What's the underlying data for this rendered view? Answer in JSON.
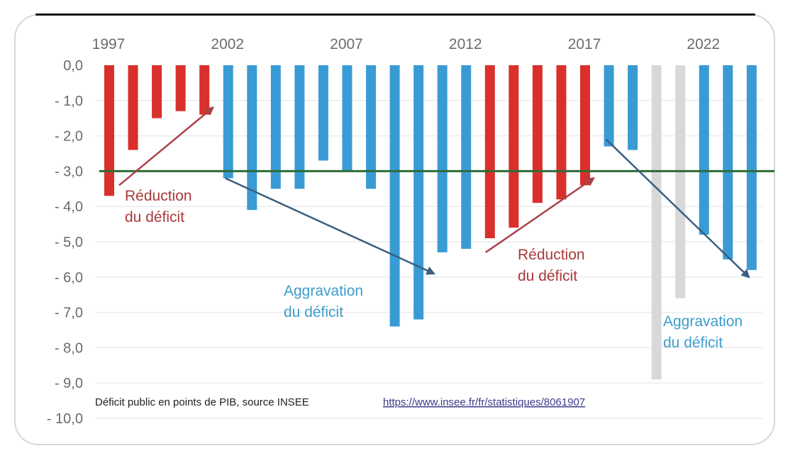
{
  "chart_data": {
    "type": "bar",
    "title": "",
    "xlabel": "",
    "ylabel": "",
    "ylim": [
      -10,
      0
    ],
    "y_ticks": [
      "0,0",
      "- 1,0",
      "- 2,0",
      "- 3,0",
      "- 4,0",
      "- 5,0",
      "- 6,0",
      "- 7,0",
      "- 8,0",
      "- 9,0",
      "- 10,0"
    ],
    "y_tick_values": [
      0,
      -1,
      -2,
      -3,
      -4,
      -5,
      -6,
      -7,
      -8,
      -9,
      -10
    ],
    "x_tick_labels": [
      "1997",
      "2002",
      "2007",
      "2012",
      "2017",
      "2022"
    ],
    "categories": [
      "1997",
      "1998",
      "1999",
      "2000",
      "2001",
      "2002",
      "2003",
      "2004",
      "2005",
      "2006",
      "2007",
      "2008",
      "2009",
      "2010",
      "2011",
      "2012",
      "2013",
      "2014",
      "2015",
      "2016",
      "2017",
      "2018",
      "2019",
      "2020",
      "2021",
      "2022",
      "2023",
      "2024"
    ],
    "values": [
      -3.7,
      -2.4,
      -1.5,
      -1.3,
      -1.4,
      -3.2,
      -4.1,
      -3.5,
      -3.5,
      -2.7,
      -3.0,
      -3.5,
      -7.4,
      -7.2,
      -5.3,
      -5.2,
      -4.9,
      -4.6,
      -3.9,
      -3.8,
      -3.4,
      -2.3,
      -2.4,
      -8.9,
      -6.6,
      -4.8,
      -5.5,
      -5.8
    ],
    "bar_groups": [
      "reduction",
      "reduction",
      "reduction",
      "reduction",
      "reduction",
      "aggravation",
      "aggravation",
      "aggravation",
      "aggravation",
      "aggravation",
      "aggravation",
      "aggravation",
      "aggravation",
      "aggravation",
      "aggravation",
      "aggravation",
      "reduction",
      "reduction",
      "reduction",
      "reduction",
      "reduction",
      "aggravation",
      "aggravation",
      "covid",
      "covid",
      "aggravation",
      "aggravation",
      "aggravation"
    ],
    "colors": {
      "reduction": "#d9302b",
      "aggravation": "#3a9bd4",
      "covid": "#d8d8d8",
      "reference_line": "#2e6b36",
      "arrow_red": "#a8424a",
      "arrow_blue": "#3a5f80"
    },
    "reference_line": {
      "value": -3.0
    },
    "grid": true,
    "annotations": [
      {
        "lines": [
          "Réduction",
          "du déficit"
        ],
        "color": "red",
        "arrow_from": [
          "1997",
          -3.4
        ],
        "arrow_to": [
          "2001",
          -1.2
        ]
      },
      {
        "lines": [
          "Aggravation",
          "du déficit"
        ],
        "color": "blue",
        "arrow_from": [
          "2002",
          -3.2
        ],
        "arrow_to": [
          "2011",
          -5.9
        ]
      },
      {
        "lines": [
          "Réduction",
          "du déficit"
        ],
        "color": "red",
        "arrow_from": [
          "2013",
          -5.3
        ],
        "arrow_to": [
          "2017",
          -3.2
        ]
      },
      {
        "lines": [
          "Aggravation",
          "du déficit"
        ],
        "color": "blue",
        "arrow_from": [
          "2018",
          -2.1
        ],
        "arrow_to": [
          "2024",
          -6.0
        ]
      }
    ],
    "source_note": "Déficit public en points de PIB, source INSEE",
    "source_link": "https://www.insee.fr/fr/statistiques/8061907"
  }
}
